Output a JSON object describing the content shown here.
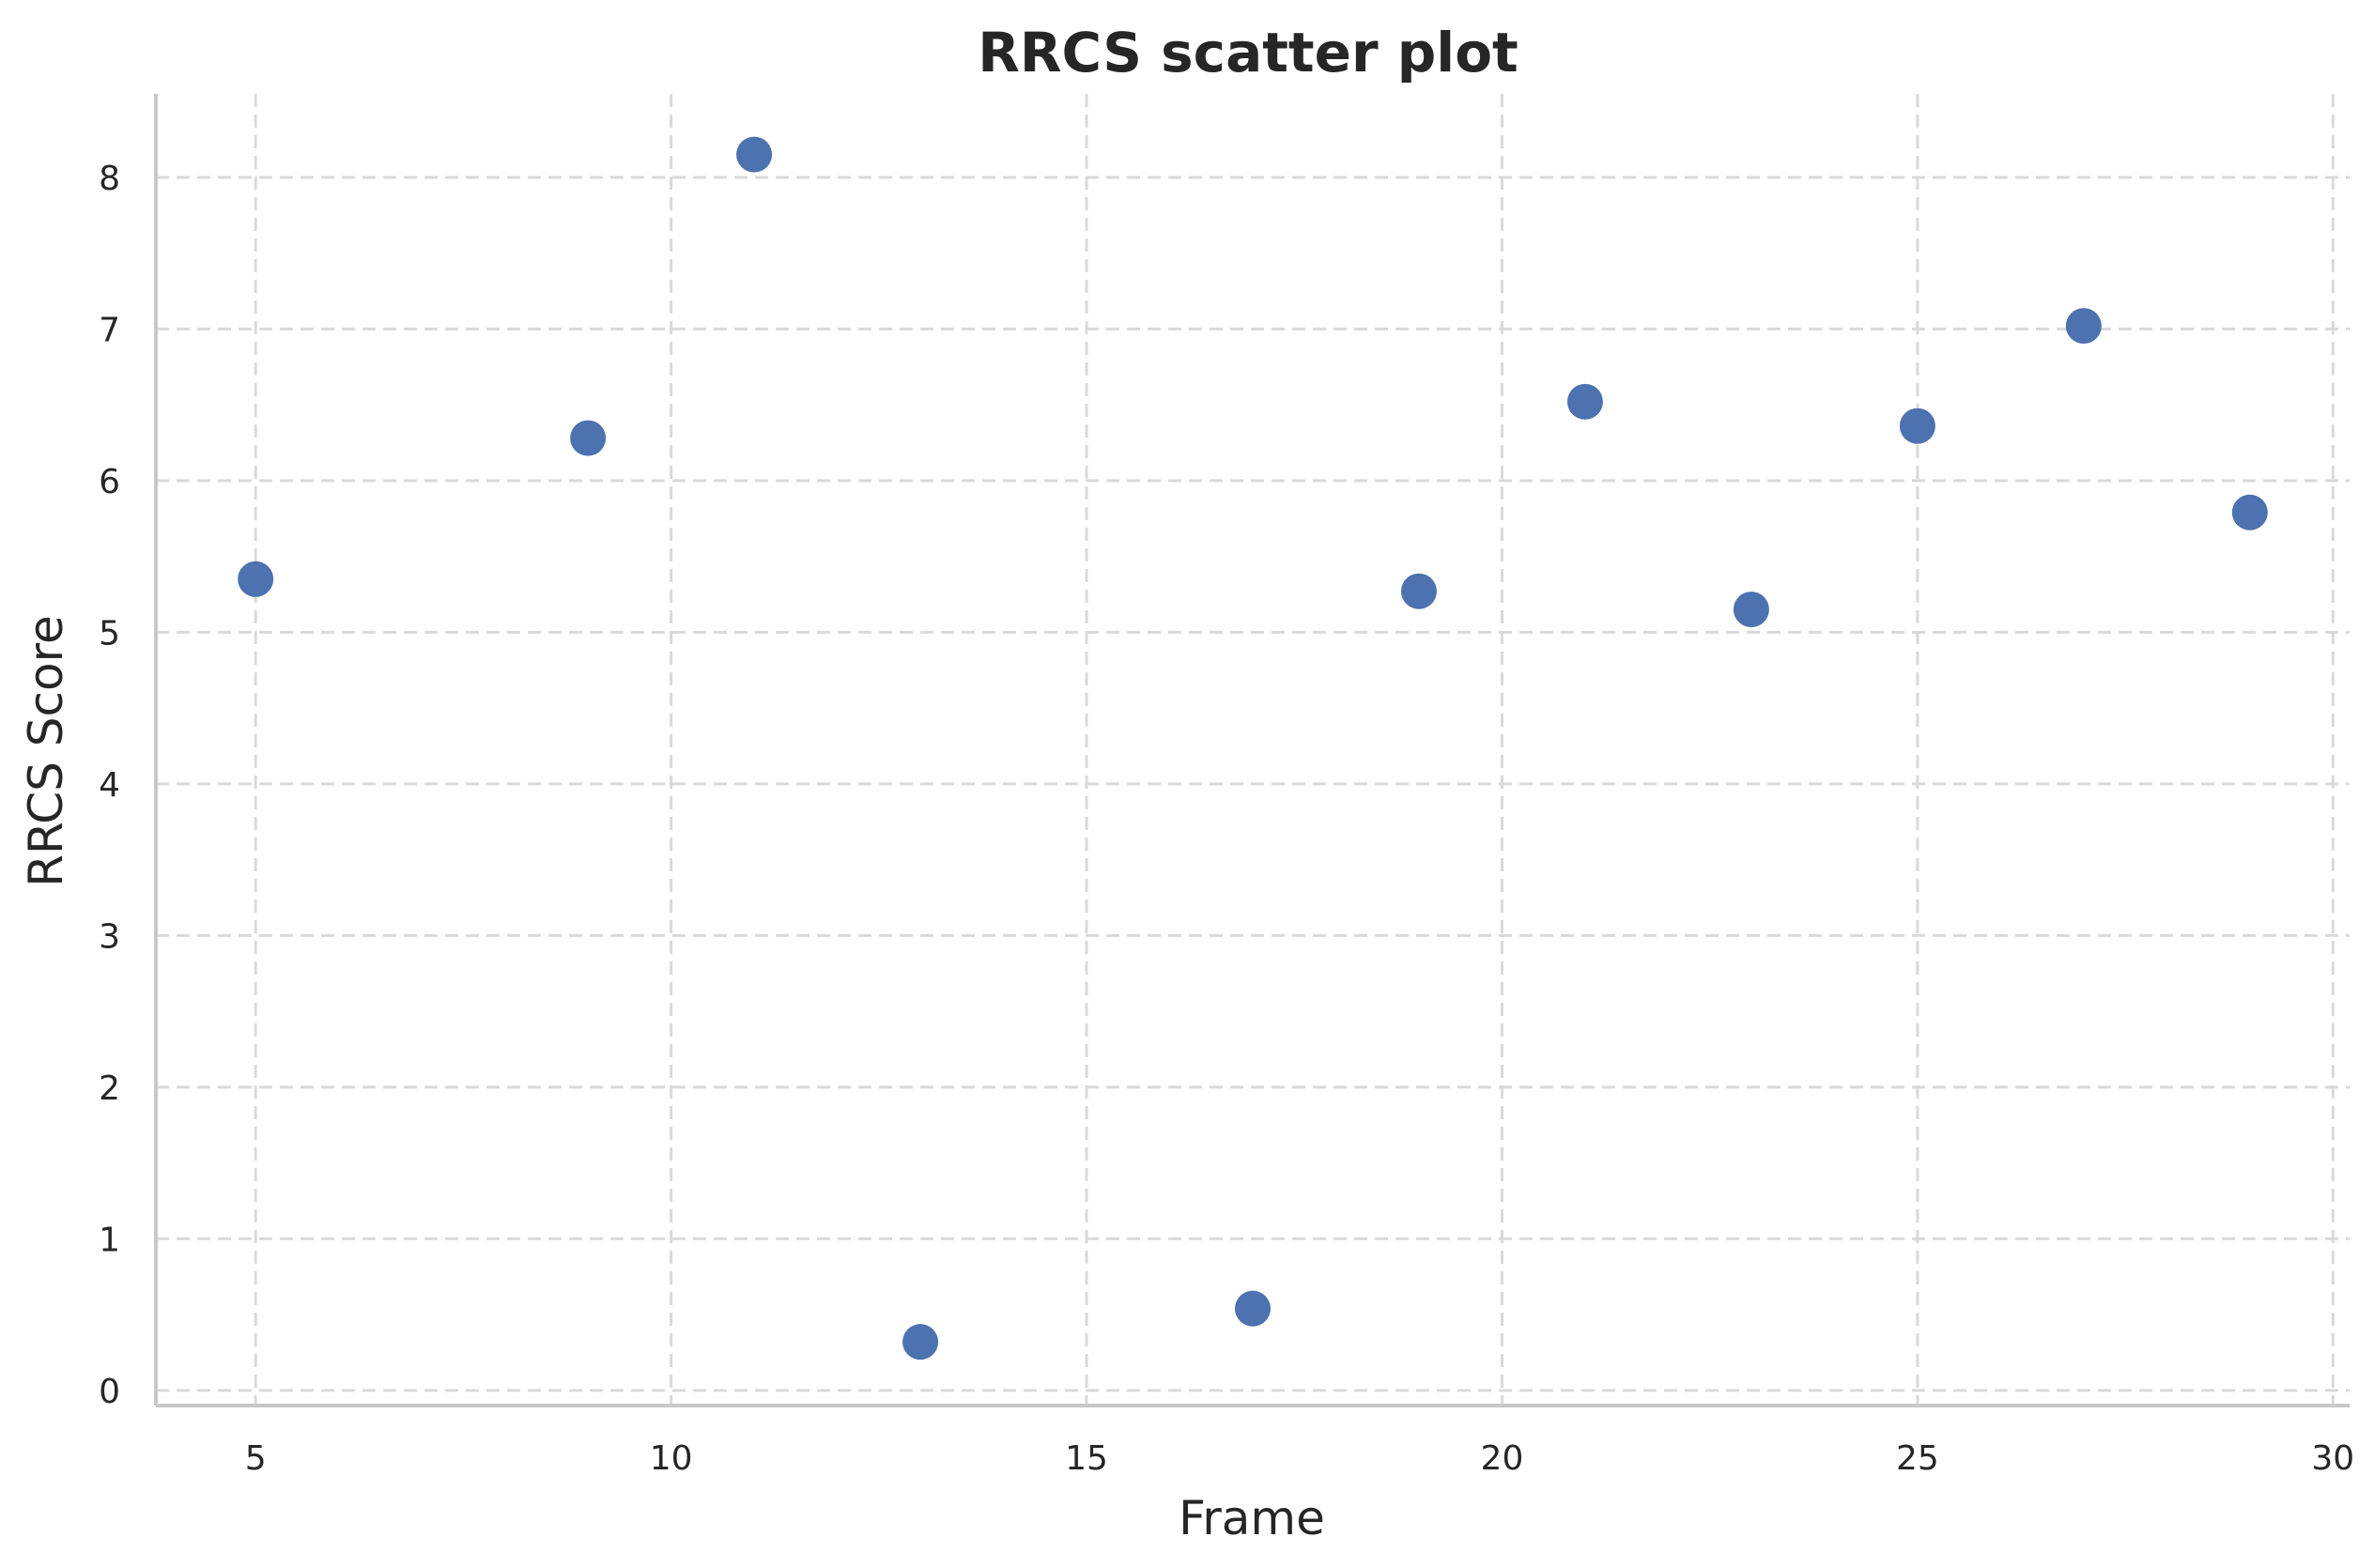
{
  "chart_data": {
    "type": "scatter",
    "title": "RRCS scatter plot",
    "xlabel": "Frame",
    "ylabel": "RRCS Score",
    "xlim": [
      3.8,
      30.2
    ],
    "ylim": [
      -0.1,
      8.55
    ],
    "xticks": [
      5,
      10,
      15,
      20,
      25,
      30
    ],
    "yticks": [
      0,
      1,
      2,
      3,
      4,
      5,
      6,
      7,
      8
    ],
    "grid": true,
    "legend": "none",
    "marker_color": "#4c72b0",
    "grid_color": "#d9d9d9",
    "x": [
      5,
      9,
      11,
      13,
      17,
      19,
      21,
      23,
      25,
      27,
      29
    ],
    "y": [
      5.35,
      6.28,
      8.15,
      0.32,
      0.54,
      5.27,
      6.52,
      5.15,
      6.36,
      7.02,
      5.79
    ]
  }
}
